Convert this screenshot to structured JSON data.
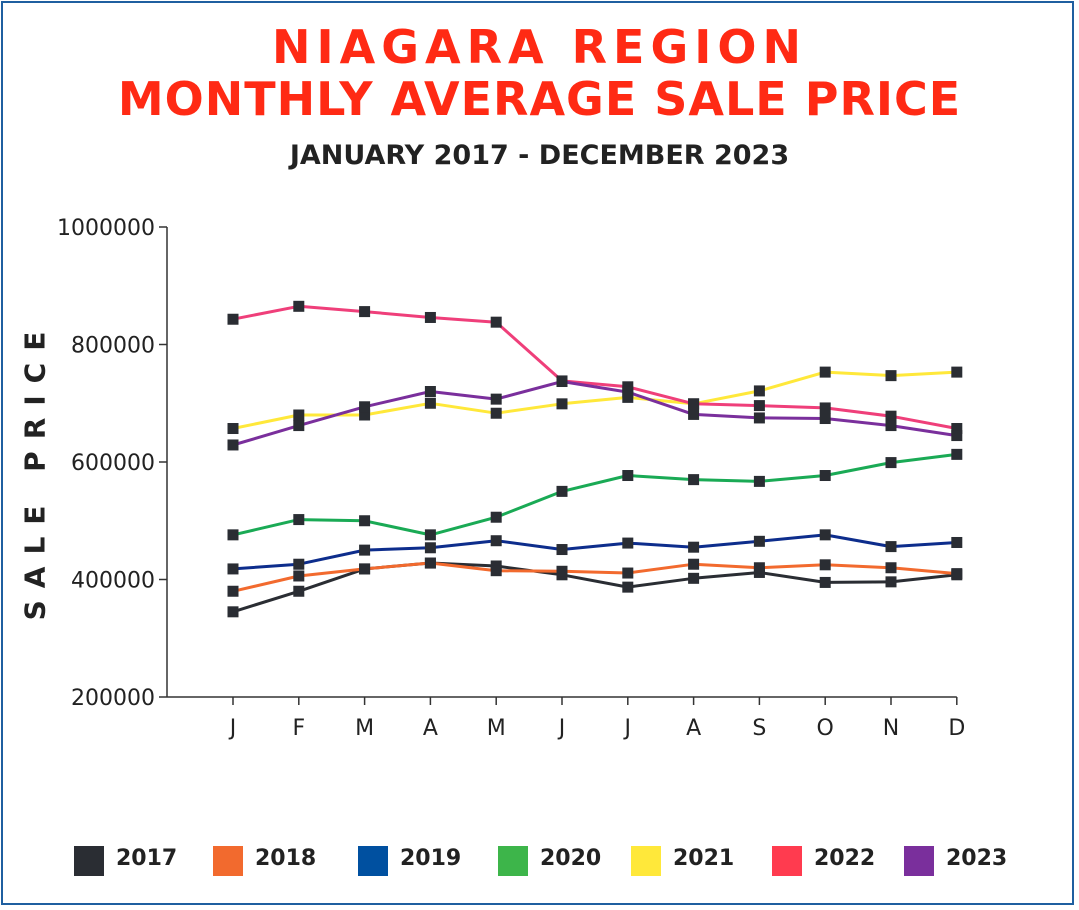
{
  "header": {
    "title_line1": "NIAGARA REGION",
    "title_line2": "MONTHLY AVERAGE SALE PRICE",
    "subtitle": "JANUARY 2017 - DECEMBER 2023"
  },
  "chart_data": {
    "type": "line",
    "title": "NIAGARA REGION MONTHLY AVERAGE SALE PRICE",
    "subtitle": "JANUARY 2017 - DECEMBER 2023",
    "xlabel": "",
    "ylabel": "SALE PRICE",
    "ylim": [
      200000,
      1000000
    ],
    "yticks": [
      200000,
      400000,
      600000,
      800000,
      1000000
    ],
    "ytick_labels": [
      "200000",
      "400000",
      "600000",
      "800000",
      "1000000"
    ],
    "categories": [
      "J",
      "F",
      "M",
      "A",
      "M",
      "J",
      "J",
      "A",
      "S",
      "O",
      "N",
      "D"
    ],
    "grid": false,
    "legend_position": "bottom",
    "series": [
      {
        "name": "2017",
        "color": "#2a2d33",
        "values": [
          345000,
          380000,
          418000,
          428000,
          423000,
          408000,
          387000,
          402000,
          412000,
          395000,
          396000,
          408000
        ]
      },
      {
        "name": "2018",
        "color": "#f26a2e",
        "values": [
          380000,
          406000,
          418000,
          428000,
          415000,
          414000,
          411000,
          426000,
          420000,
          425000,
          420000,
          410000
        ]
      },
      {
        "name": "2019",
        "color": "#0d2d8c",
        "values": [
          418000,
          426000,
          450000,
          454000,
          466000,
          451000,
          462000,
          455000,
          465000,
          476000,
          456000,
          463000
        ]
      },
      {
        "name": "2020",
        "color": "#1aaa55",
        "values": [
          476000,
          502000,
          500000,
          476000,
          506000,
          550000,
          577000,
          570000,
          567000,
          577000,
          599000,
          613000
        ]
      },
      {
        "name": "2021",
        "color": "#ffe83a",
        "values": [
          657000,
          680000,
          680000,
          700000,
          683000,
          699000,
          710000,
          699000,
          721000,
          753000,
          747000,
          753000
        ]
      },
      {
        "name": "2022",
        "color": "#ef3f7a",
        "values": [
          843000,
          865000,
          856000,
          846000,
          838000,
          738000,
          728000,
          699000,
          696000,
          692000,
          678000,
          657000
        ]
      },
      {
        "name": "2023",
        "color": "#7a2f9c",
        "values": [
          629000,
          662000,
          694000,
          720000,
          707000,
          737000,
          719000,
          681000,
          675000,
          674000,
          662000,
          645000
        ]
      }
    ]
  },
  "legend": {
    "swatch_colors": [
      "#2a2d33",
      "#f26a2e",
      "#0050a0",
      "#3db54a",
      "#ffe83a",
      "#ff3b4f",
      "#7a2f9c"
    ],
    "labels": [
      "2017",
      "2018",
      "2019",
      "2020",
      "2021",
      "2022",
      "2023"
    ]
  }
}
